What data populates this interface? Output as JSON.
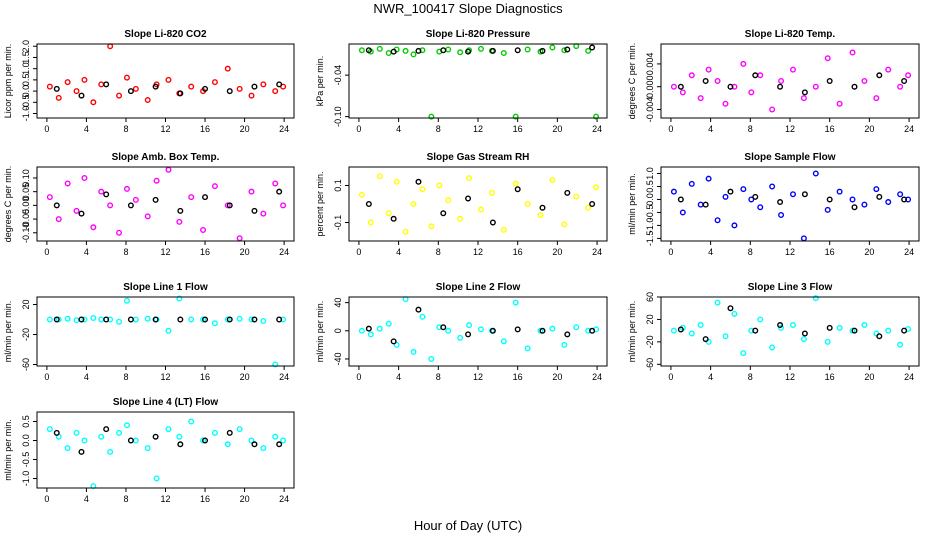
{
  "title": "NWR_100417  Slope Diagnostics",
  "xlabel": "Hour of Day (UTC)",
  "chart_data": [
    {
      "type": "scatter",
      "title": "Slope Li-820 CO2",
      "ylabel": "Licor ppm per min.",
      "xlim": [
        -1,
        25
      ],
      "xticks": [
        0,
        4,
        8,
        12,
        16,
        20,
        24
      ],
      "ylim": [
        -1.2,
        2.1
      ],
      "yticks": [
        {
          "value": -1,
          "label": "-1.0"
        },
        {
          "value": -0.5,
          "label": "-0.5"
        },
        {
          "value": 0,
          "label": "0.0"
        },
        {
          "value": 0.5,
          "label": "0.5"
        },
        {
          "value": 1,
          "label": "1.0"
        },
        {
          "value": 1.5,
          "label": "1.5"
        },
        {
          "value": 2,
          "label": "2.0"
        }
      ],
      "series": [
        {
          "color": "#ff0000",
          "x": [
            0.3,
            1.2,
            2.1,
            3.0,
            3.8,
            4.7,
            5.5,
            6.4,
            7.3,
            8.1,
            9.0,
            10.2,
            11.1,
            12.3,
            13.4,
            14.6,
            15.8,
            17.0,
            18.3,
            19.5,
            20.7,
            21.9,
            23.1,
            23.9
          ],
          "y": [
            0.2,
            -0.3,
            0.4,
            0.0,
            0.5,
            -0.5,
            0.3,
            2.0,
            -0.2,
            0.6,
            0.1,
            -0.4,
            0.3,
            0.5,
            -0.1,
            0.2,
            0.0,
            0.4,
            1.0,
            0.1,
            -0.2,
            0.3,
            0.0,
            0.2
          ]
        },
        {
          "color": "#000000",
          "x": [
            1,
            3.5,
            6,
            8.5,
            11,
            13.5,
            16,
            18.5,
            21,
            23.5
          ],
          "y": [
            0.1,
            -0.2,
            0.3,
            0.0,
            0.2,
            -0.1,
            0.1,
            0.0,
            0.2,
            0.3
          ]
        }
      ]
    },
    {
      "type": "scatter",
      "title": "Slope Li-820 Pressure",
      "ylabel": "kPa per min.",
      "xlim": [
        -1,
        25
      ],
      "xticks": [
        0,
        4,
        8,
        12,
        16,
        20,
        24
      ],
      "ylim": [
        -0.102,
        0.005
      ],
      "yticks": [
        {
          "value": -0.1,
          "label": "-0.10"
        },
        -0.04
      ],
      "series": [
        {
          "color": "#00cc00",
          "x": [
            0.3,
            1.2,
            2.1,
            3.0,
            3.8,
            4.7,
            5.5,
            6.4,
            7.3,
            8.1,
            9.0,
            10.2,
            11.1,
            12.3,
            13.4,
            14.6,
            15.8,
            17.0,
            18.3,
            19.5,
            20.7,
            21.9,
            23.1,
            23.9
          ],
          "y": [
            -0.004,
            -0.006,
            -0.002,
            -0.008,
            -0.003,
            -0.005,
            -0.01,
            -0.004,
            -0.1,
            -0.006,
            -0.003,
            -0.007,
            -0.004,
            -0.002,
            -0.005,
            -0.008,
            -0.1,
            -0.003,
            -0.006,
            0.0,
            -0.004,
            0.002,
            -0.005,
            -0.1
          ]
        },
        {
          "color": "#000000",
          "x": [
            1,
            3.5,
            6,
            8.5,
            11,
            13.5,
            16,
            18.5,
            21,
            23.5
          ],
          "y": [
            -0.004,
            -0.006,
            -0.005,
            -0.004,
            -0.006,
            -0.005,
            -0.004,
            -0.005,
            -0.003,
            0.0
          ]
        }
      ]
    },
    {
      "type": "scatter",
      "title": "Slope Li-820 Temp.",
      "ylabel": "degrees C per min.",
      "xlim": [
        -1,
        25
      ],
      "xticks": [
        0,
        4,
        8,
        12,
        16,
        20,
        24
      ],
      "ylim": [
        -0.0055,
        0.0075
      ],
      "yticks": [
        -0.004,
        {
          "value": 0,
          "label": "0.000"
        },
        0.004
      ],
      "series": [
        {
          "color": "#ff00ff",
          "x": [
            0.3,
            1.2,
            2.1,
            3.0,
            3.8,
            4.7,
            5.5,
            6.4,
            7.3,
            8.1,
            9.0,
            10.2,
            11.1,
            12.3,
            13.4,
            14.6,
            15.8,
            17.0,
            18.3,
            19.5,
            20.7,
            21.9,
            23.1,
            23.9
          ],
          "y": [
            0,
            -0.001,
            0.002,
            -0.002,
            0.003,
            0.001,
            -0.003,
            0.0,
            0.004,
            -0.001,
            0.002,
            -0.004,
            0.001,
            0.003,
            -0.002,
            0.0,
            0.005,
            -0.003,
            0.006,
            0.001,
            -0.002,
            0.003,
            0.0,
            0.002
          ]
        },
        {
          "color": "#000000",
          "x": [
            1,
            3.5,
            6,
            8.5,
            11,
            13.5,
            16,
            18.5,
            21,
            23.5
          ],
          "y": [
            0,
            0.001,
            0.0,
            0.002,
            0.0,
            -0.001,
            0.001,
            0.0,
            0.002,
            0.001
          ]
        }
      ]
    },
    {
      "type": "scatter",
      "title": "Slope Amb. Box Temp.",
      "ylabel": "degrees C per min.",
      "xlim": [
        -1,
        25
      ],
      "xticks": [
        0,
        4,
        8,
        12,
        16,
        20,
        24
      ],
      "ylim": [
        -0.13,
        0.14
      ],
      "yticks": [
        {
          "value": -0.1,
          "label": "-0.10"
        },
        -0.05,
        {
          "value": 0,
          "label": "0.00"
        },
        0.05,
        {
          "value": 0.1,
          "label": "0.10"
        }
      ],
      "series": [
        {
          "color": "#ff00ff",
          "x": [
            0.3,
            1.2,
            2.1,
            3.0,
            3.8,
            4.7,
            5.5,
            6.4,
            7.3,
            8.1,
            9.0,
            10.2,
            11.1,
            12.3,
            13.4,
            14.6,
            15.8,
            17.0,
            18.3,
            19.5,
            20.7,
            21.9,
            23.1,
            23.9
          ],
          "y": [
            0.03,
            -0.05,
            0.08,
            -0.02,
            0.1,
            -0.08,
            0.05,
            0.0,
            -0.1,
            0.06,
            0.02,
            -0.04,
            0.09,
            0.13,
            -0.06,
            0.03,
            -0.09,
            0.07,
            0.0,
            -0.12,
            0.05,
            -0.03,
            0.08,
            0.0
          ]
        },
        {
          "color": "#000000",
          "x": [
            1,
            3.5,
            6,
            8.5,
            11,
            13.5,
            16,
            18.5,
            21,
            23.5
          ],
          "y": [
            0.0,
            -0.03,
            0.04,
            0.0,
            0.02,
            -0.02,
            0.03,
            0.0,
            -0.02,
            0.05
          ]
        }
      ]
    },
    {
      "type": "scatter",
      "title": "Slope Gas Stream RH",
      "ylabel": "percent per min.",
      "xlim": [
        -1,
        25
      ],
      "xticks": [
        0,
        4,
        8,
        12,
        16,
        20,
        24
      ],
      "ylim": [
        -0.2,
        0.2
      ],
      "yticks": [
        -0.1,
        0.1
      ],
      "series": [
        {
          "color": "#ffff00",
          "x": [
            0.3,
            1.2,
            2.1,
            3.0,
            3.8,
            4.7,
            5.5,
            6.4,
            7.3,
            8.1,
            9.0,
            10.2,
            11.1,
            12.3,
            13.4,
            14.6,
            15.8,
            17.0,
            18.3,
            19.5,
            20.7,
            21.9,
            23.1,
            23.9
          ],
          "y": [
            0.05,
            -0.1,
            0.15,
            -0.05,
            0.12,
            -0.15,
            0.0,
            0.08,
            -0.12,
            0.1,
            0.02,
            -0.08,
            0.14,
            -0.03,
            0.06,
            -0.14,
            0.11,
            0.0,
            -0.06,
            0.13,
            -0.11,
            0.04,
            -0.02,
            0.09
          ]
        },
        {
          "color": "#000000",
          "x": [
            1,
            3.5,
            6,
            8.5,
            11,
            13.5,
            16,
            18.5,
            21,
            23.5
          ],
          "y": [
            0.0,
            -0.08,
            0.12,
            -0.05,
            0.03,
            -0.1,
            0.08,
            -0.02,
            0.06,
            0.0
          ]
        }
      ]
    },
    {
      "type": "scatter",
      "title": "Slope Sample Flow",
      "ylabel": "ml/min per min.",
      "xlim": [
        -1,
        25
      ],
      "xticks": [
        0,
        4,
        8,
        12,
        16,
        20,
        24
      ],
      "ylim": [
        -1.6,
        1.25
      ],
      "yticks": [
        -1.5,
        {
          "value": -1,
          "label": "-1.0"
        },
        -0.5,
        {
          "value": 0,
          "label": "0.0"
        },
        0.5,
        {
          "value": 1,
          "label": "1.0"
        }
      ],
      "series": [
        {
          "color": "#0000ff",
          "x": [
            0.3,
            1.2,
            2.1,
            3.0,
            3.8,
            4.7,
            5.5,
            6.4,
            7.3,
            8.1,
            9.0,
            10.2,
            11.1,
            12.3,
            13.4,
            14.6,
            15.8,
            17.0,
            18.3,
            19.5,
            20.7,
            21.9,
            23.1,
            23.9
          ],
          "y": [
            0.3,
            -0.5,
            0.6,
            -0.2,
            0.8,
            -0.8,
            0.1,
            -1.0,
            0.4,
            0.0,
            -0.3,
            0.5,
            -0.6,
            0.2,
            -1.5,
            1.0,
            -0.4,
            0.3,
            0.0,
            -0.2,
            0.4,
            -0.1,
            0.2,
            0.0
          ]
        },
        {
          "color": "#000000",
          "x": [
            1,
            3.5,
            6,
            8.5,
            11,
            13.5,
            16,
            18.5,
            21,
            23.5
          ],
          "y": [
            0.0,
            -0.2,
            0.3,
            0.1,
            -0.1,
            0.2,
            0.0,
            -0.3,
            0.1,
            0.0
          ]
        }
      ]
    },
    {
      "type": "scatter",
      "title": "Slope Line 1 Flow",
      "ylabel": "ml/min per min.",
      "xlim": [
        -1,
        25
      ],
      "xticks": [
        0,
        4,
        8,
        12,
        16,
        20,
        24
      ],
      "ylim": [
        -62,
        30
      ],
      "yticks": [
        -60,
        -20,
        20
      ],
      "series": [
        {
          "color": "#00ffff",
          "x": [
            0.3,
            1.2,
            2.1,
            3.0,
            3.8,
            4.7,
            5.5,
            6.4,
            7.3,
            8.1,
            9.0,
            10.2,
            11.1,
            12.3,
            13.4,
            14.6,
            15.8,
            17.0,
            18.3,
            19.5,
            20.7,
            21.9,
            23.1,
            23.9
          ],
          "y": [
            0,
            0,
            1,
            -1,
            0,
            2,
            0,
            0,
            -3,
            25,
            0,
            1,
            0,
            -15,
            28,
            0,
            0,
            -5,
            0,
            1,
            0,
            -2,
            -60,
            0
          ]
        },
        {
          "color": "#000000",
          "x": [
            1,
            3.5,
            6,
            8.5,
            11,
            13.5,
            16,
            18.5,
            21,
            23.5
          ],
          "y": [
            0,
            0,
            0,
            0,
            0,
            0,
            0,
            0,
            0,
            0
          ]
        }
      ]
    },
    {
      "type": "scatter",
      "title": "Slope Line 2 Flow",
      "ylabel": "ml/min per min.",
      "xlim": [
        -1,
        25
      ],
      "xticks": [
        0,
        4,
        8,
        12,
        16,
        20,
        24
      ],
      "ylim": [
        -50,
        48
      ],
      "yticks": [
        -40,
        0,
        40
      ],
      "series": [
        {
          "color": "#00ffff",
          "x": [
            0.3,
            1.2,
            2.1,
            3.0,
            3.8,
            4.7,
            5.5,
            6.4,
            7.3,
            8.1,
            9.0,
            10.2,
            11.1,
            12.3,
            13.4,
            14.6,
            15.8,
            17.0,
            18.3,
            19.5,
            20.7,
            21.9,
            23.1,
            23.9
          ],
          "y": [
            0,
            -5,
            3,
            10,
            -20,
            45,
            -30,
            20,
            -40,
            5,
            0,
            -10,
            8,
            2,
            0,
            -15,
            40,
            -25,
            0,
            3,
            -20,
            5,
            0,
            2
          ]
        },
        {
          "color": "#000000",
          "x": [
            1,
            3.5,
            6,
            8.5,
            11,
            13.5,
            16,
            18.5,
            21,
            23.5
          ],
          "y": [
            3,
            -15,
            30,
            5,
            -5,
            0,
            2,
            0,
            -5,
            0
          ]
        }
      ]
    },
    {
      "type": "scatter",
      "title": "Slope Line 3 Flow",
      "ylabel": "ml/min per min.",
      "xlim": [
        -1,
        25
      ],
      "xticks": [
        0,
        4,
        8,
        12,
        16,
        20,
        24
      ],
      "ylim": [
        -63,
        60
      ],
      "yticks": [
        -60,
        -20,
        20,
        60
      ],
      "series": [
        {
          "color": "#00ffff",
          "x": [
            0.3,
            1.2,
            2.1,
            3.0,
            3.8,
            4.7,
            5.5,
            6.4,
            7.3,
            8.1,
            9.0,
            10.2,
            11.1,
            12.3,
            13.4,
            14.6,
            15.8,
            17.0,
            18.3,
            19.5,
            20.7,
            21.9,
            23.1,
            23.9
          ],
          "y": [
            0,
            5,
            -5,
            10,
            -20,
            50,
            -10,
            30,
            -40,
            0,
            20,
            -30,
            5,
            10,
            -15,
            58,
            -20,
            5,
            0,
            10,
            -5,
            0,
            -25,
            3
          ]
        },
        {
          "color": "#000000",
          "x": [
            1,
            3.5,
            6,
            8.5,
            11,
            13.5,
            16,
            18.5,
            21,
            23.5
          ],
          "y": [
            2,
            -15,
            40,
            0,
            10,
            -5,
            5,
            0,
            -10,
            0
          ]
        }
      ]
    },
    {
      "type": "scatter",
      "title": "Slope Line 4 (LT) Flow",
      "ylabel": "ml/min per min.",
      "xlim": [
        -1,
        25
      ],
      "xticks": [
        0,
        4,
        8,
        12,
        16,
        20,
        24
      ],
      "ylim": [
        -1.25,
        0.75
      ],
      "yticks": [
        {
          "value": -1,
          "label": "-1.0"
        },
        -0.5,
        {
          "value": 0,
          "label": "0.0"
        },
        0.5
      ],
      "series": [
        {
          "color": "#00ffff",
          "x": [
            0.3,
            1.2,
            2.1,
            3.0,
            3.8,
            4.7,
            5.5,
            6.4,
            7.3,
            8.1,
            9.0,
            10.2,
            11.1,
            12.3,
            13.4,
            14.6,
            15.8,
            17.0,
            18.3,
            19.5,
            20.7,
            21.9,
            23.1,
            23.9
          ],
          "y": [
            0.3,
            0.1,
            -0.2,
            0.2,
            0.0,
            -1.2,
            0.1,
            -0.3,
            0.2,
            0.4,
            0.0,
            -0.2,
            -1.0,
            0.3,
            0.1,
            0.5,
            0.0,
            0.2,
            -0.1,
            0.3,
            0.0,
            -0.2,
            0.1,
            0.0
          ]
        },
        {
          "color": "#000000",
          "x": [
            1,
            3.5,
            6,
            8.5,
            11,
            13.5,
            16,
            18.5,
            21,
            23.5
          ],
          "y": [
            0.2,
            -0.3,
            0.3,
            0.0,
            0.1,
            -0.1,
            0.0,
            0.2,
            -0.1,
            -0.1
          ]
        }
      ]
    }
  ]
}
